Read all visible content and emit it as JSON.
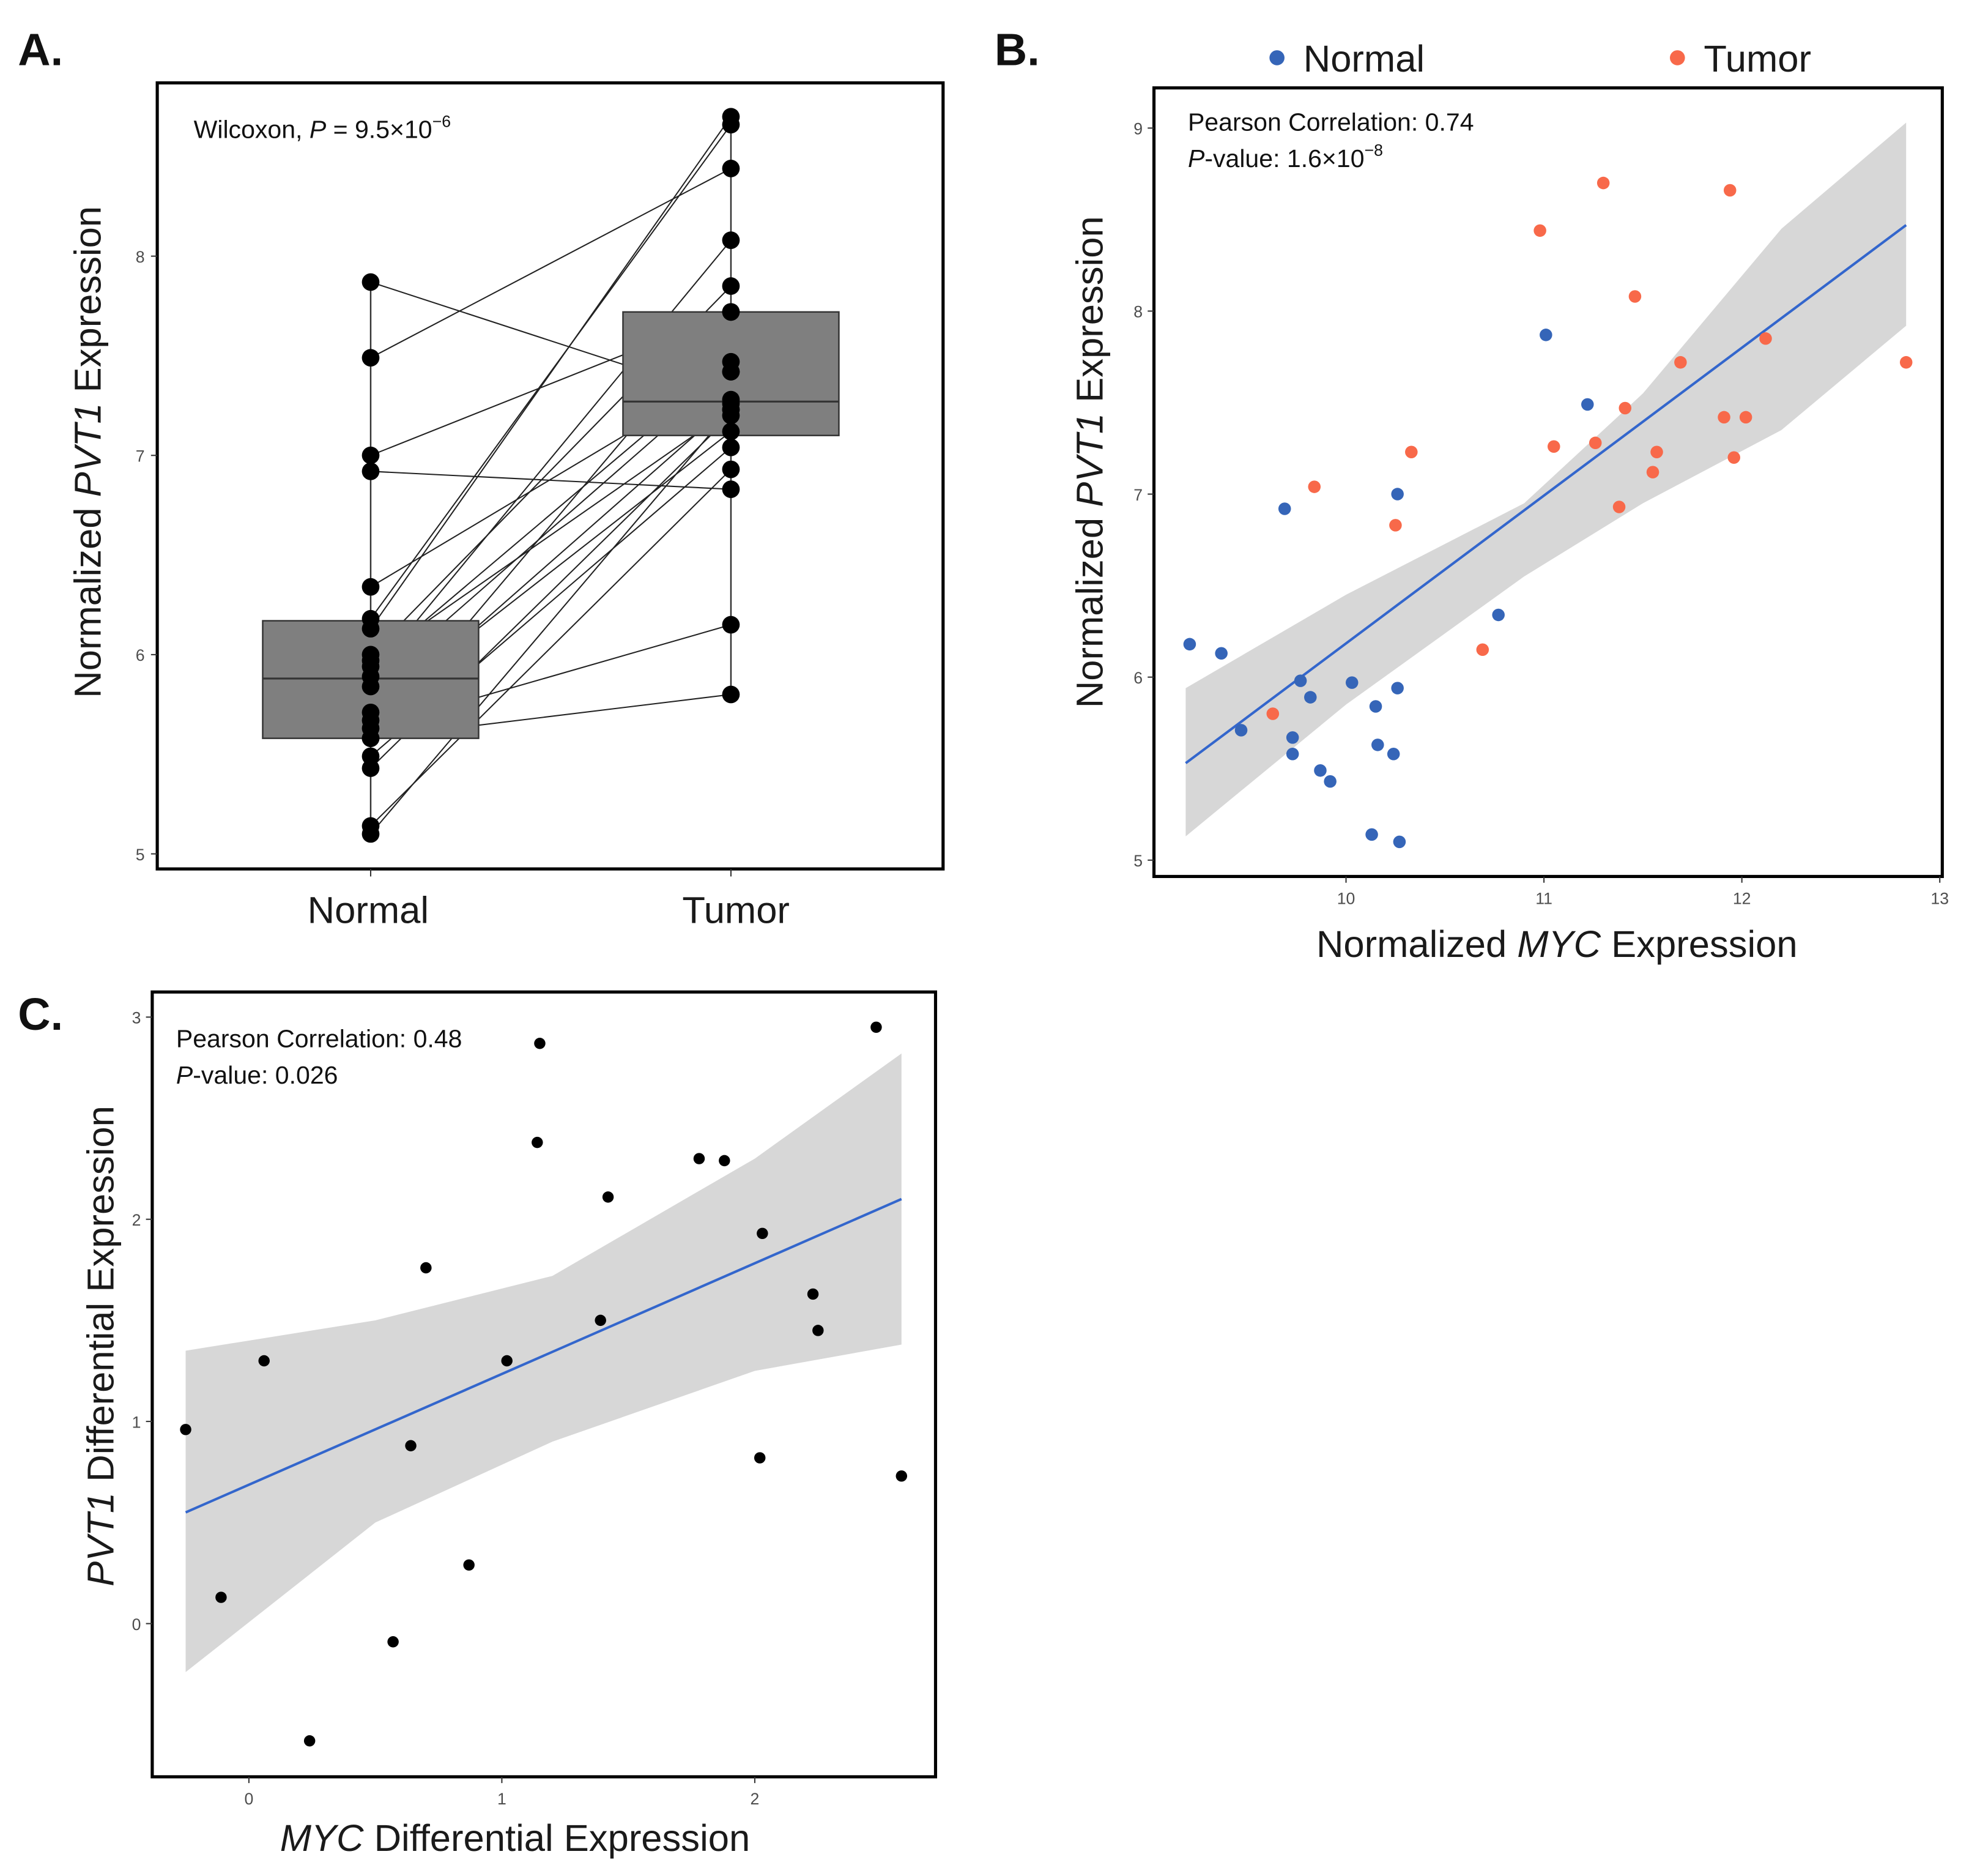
{
  "colors": {
    "normal": "#3565b8",
    "tumor": "#f8694a",
    "fit": "#3366cc",
    "ribbon": "#d3d3d3",
    "box": "#7f7f7f",
    "point": "#000000"
  },
  "chart_data": [
    {
      "panel": "A.",
      "type": "box-paired",
      "annotation": {
        "test": "Wilcoxon, ",
        "p_label": "P",
        "p_eq": " = 9.5×10",
        "p_exp": "−6"
      },
      "ylabel": {
        "prefix": "Normalized ",
        "gene": "PVT1",
        "suffix": " Expression"
      },
      "categories": [
        "Normal",
        "Tumor"
      ],
      "ylim": [
        4.9,
        8.9
      ],
      "yticks": [
        5,
        6,
        7,
        8
      ],
      "box": [
        {
          "min": 5.1,
          "q1": 5.58,
          "median": 5.88,
          "q3": 6.17,
          "max": 7.87
        },
        {
          "min": 5.79,
          "q1": 7.1,
          "median": 7.27,
          "q3": 7.72,
          "max": 8.7
        }
      ],
      "pairs": [
        [
          7.87,
          7.28
        ],
        [
          7.49,
          8.44
        ],
        [
          7.0,
          7.72
        ],
        [
          6.92,
          6.83
        ],
        [
          6.34,
          7.42
        ],
        [
          6.18,
          8.66
        ],
        [
          6.13,
          8.7
        ],
        [
          6.0,
          7.85
        ],
        [
          5.97,
          7.23
        ],
        [
          5.94,
          7.47
        ],
        [
          5.89,
          8.08
        ],
        [
          5.84,
          7.42
        ],
        [
          5.71,
          7.12
        ],
        [
          5.67,
          7.26
        ],
        [
          5.63,
          6.15
        ],
        [
          5.58,
          7.72
        ],
        [
          5.58,
          5.8
        ],
        [
          5.49,
          7.04
        ],
        [
          5.43,
          7.2
        ],
        [
          5.14,
          6.93
        ],
        [
          5.1,
          7.23
        ]
      ]
    },
    {
      "panel": "B.",
      "type": "scatter",
      "legend": [
        {
          "label": "Normal",
          "key": "normal"
        },
        {
          "label": "Tumor",
          "key": "tumor"
        }
      ],
      "legend_position": "top",
      "annotation": {
        "line1": "Pearson Correlation: 0.74",
        "p_label": "P",
        "p_rest": "-value: 1.6×10",
        "p_exp": "−8"
      },
      "xlabel": {
        "prefix": "Normalized ",
        "gene": "MYC",
        "suffix": " Expression"
      },
      "ylabel": {
        "prefix": "Normalized ",
        "gene": "PVT1",
        "suffix": " Expression"
      },
      "xlim": [
        9.1,
        13.0
      ],
      "ylim": [
        4.9,
        9.1
      ],
      "xticks": [
        10,
        11,
        12,
        13
      ],
      "yticks": [
        5,
        6,
        7,
        8,
        9
      ],
      "series": [
        {
          "name": "Normal",
          "color_key": "normal",
          "points": [
            [
              9.21,
              6.18
            ],
            [
              9.37,
              6.13
            ],
            [
              9.47,
              5.71
            ],
            [
              9.73,
              5.67
            ],
            [
              9.73,
              5.58
            ],
            [
              9.77,
              5.98
            ],
            [
              9.82,
              5.89
            ],
            [
              9.87,
              5.49
            ],
            [
              9.92,
              5.43
            ],
            [
              10.03,
              5.97
            ],
            [
              10.15,
              5.84
            ],
            [
              10.16,
              5.63
            ],
            [
              10.24,
              5.58
            ],
            [
              10.26,
              5.94
            ],
            [
              10.13,
              5.14
            ],
            [
              10.27,
              5.1
            ],
            [
              9.69,
              6.92
            ],
            [
              10.26,
              7.0
            ],
            [
              10.77,
              6.34
            ],
            [
              11.01,
              7.87
            ],
            [
              11.22,
              7.49
            ]
          ]
        },
        {
          "name": "Tumor",
          "color_key": "tumor",
          "points": [
            [
              9.63,
              5.8
            ],
            [
              9.84,
              7.04
            ],
            [
              10.25,
              6.83
            ],
            [
              10.33,
              7.23
            ],
            [
              10.69,
              6.15
            ],
            [
              10.98,
              8.44
            ],
            [
              11.05,
              7.26
            ],
            [
              11.3,
              8.7
            ],
            [
              11.26,
              7.28
            ],
            [
              11.46,
              8.08
            ],
            [
              11.41,
              7.47
            ],
            [
              11.38,
              6.93
            ],
            [
              11.57,
              7.23
            ],
            [
              11.55,
              7.12
            ],
            [
              11.69,
              7.72
            ],
            [
              11.91,
              7.42
            ],
            [
              11.94,
              8.66
            ],
            [
              11.96,
              7.2
            ],
            [
              12.02,
              7.42
            ],
            [
              12.12,
              7.85
            ],
            [
              12.83,
              7.72
            ]
          ]
        }
      ],
      "fit": [
        [
          9.19,
          5.53
        ],
        [
          12.83,
          8.47
        ]
      ],
      "ribbon": [
        [
          9.19,
          5.13,
          5.94
        ],
        [
          10.0,
          5.85,
          6.45
        ],
        [
          10.9,
          6.55,
          6.95
        ],
        [
          11.5,
          6.95,
          7.55
        ],
        [
          12.2,
          7.35,
          8.45
        ],
        [
          12.83,
          7.92,
          9.03
        ]
      ]
    },
    {
      "panel": "C.",
      "type": "scatter",
      "annotation": {
        "line1": "Pearson Correlation: 0.48",
        "p_label": "P",
        "p_rest": "-value: 0.026"
      },
      "xlabel": {
        "prefix": "",
        "gene": "MYC",
        "suffix": " Differential Expression"
      },
      "ylabel": {
        "prefix": "",
        "gene": "PVT1",
        "suffix": " Differential Expression"
      },
      "xlim": [
        -0.38,
        2.72
      ],
      "ylim": [
        -0.76,
        3.14
      ],
      "xticks": [
        0,
        1,
        2
      ],
      "yticks": [
        0,
        1,
        2,
        3
      ],
      "points": [
        [
          -0.25,
          0.96
        ],
        [
          -0.11,
          0.13
        ],
        [
          0.06,
          1.3
        ],
        [
          0.24,
          -0.58
        ],
        [
          0.57,
          -0.09
        ],
        [
          0.64,
          0.88
        ],
        [
          0.7,
          1.76
        ],
        [
          0.87,
          0.29
        ],
        [
          1.02,
          1.3
        ],
        [
          1.14,
          2.38
        ],
        [
          1.15,
          2.87
        ],
        [
          1.39,
          1.5
        ],
        [
          1.42,
          2.11
        ],
        [
          1.78,
          2.3
        ],
        [
          1.88,
          2.29
        ],
        [
          2.02,
          0.82
        ],
        [
          2.03,
          1.93
        ],
        [
          2.23,
          1.63
        ],
        [
          2.25,
          1.45
        ],
        [
          2.48,
          2.95
        ],
        [
          2.58,
          0.73
        ]
      ],
      "fit": [
        [
          -0.25,
          0.55
        ],
        [
          2.58,
          2.1
        ]
      ],
      "ribbon": [
        [
          -0.25,
          -0.24,
          1.35
        ],
        [
          0.5,
          0.5,
          1.5
        ],
        [
          1.2,
          0.9,
          1.72
        ],
        [
          2.0,
          1.25,
          2.3
        ],
        [
          2.58,
          1.38,
          2.82
        ]
      ]
    }
  ]
}
